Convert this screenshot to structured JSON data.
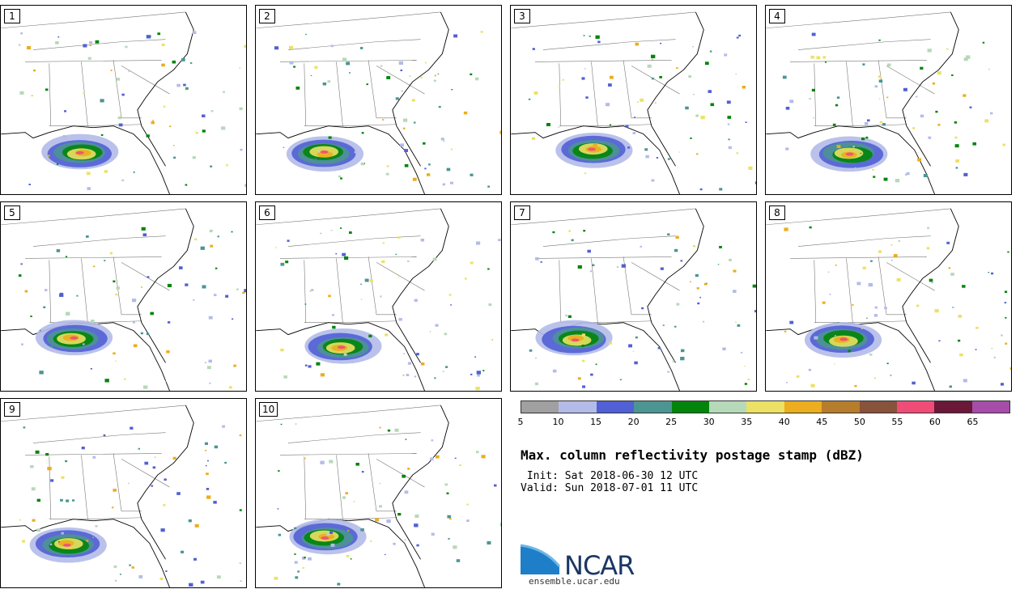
{
  "panels": [
    {
      "label": "1",
      "seed": 11
    },
    {
      "label": "2",
      "seed": 23
    },
    {
      "label": "3",
      "seed": 37
    },
    {
      "label": "4",
      "seed": 41
    },
    {
      "label": "5",
      "seed": 53
    },
    {
      "label": "6",
      "seed": 67
    },
    {
      "label": "7",
      "seed": 71
    },
    {
      "label": "8",
      "seed": 83
    },
    {
      "label": "9",
      "seed": 97
    },
    {
      "label": "10",
      "seed": 101
    }
  ],
  "colorbar": {
    "ticks": [
      "5",
      "10",
      "15",
      "20",
      "25",
      "30",
      "35",
      "40",
      "45",
      "50",
      "55",
      "60",
      "65"
    ],
    "colors": [
      "#a0a0a0",
      "#b3bbe9",
      "#5160d4",
      "#4b9592",
      "#03850b",
      "#b6d9b9",
      "#ece164",
      "#ecad1e",
      "#b67d2c",
      "#88523b",
      "#ef4c78",
      "#6a1738",
      "#a64ca9"
    ]
  },
  "title": "Max. column reflectivity postage stamp (dBZ)",
  "init": " Init: Sat 2018-06-30 12 UTC",
  "valid": "Valid: Sun 2018-07-01 11 UTC",
  "logo": {
    "text": "NCAR",
    "url": "ensemble.ucar.edu"
  }
}
